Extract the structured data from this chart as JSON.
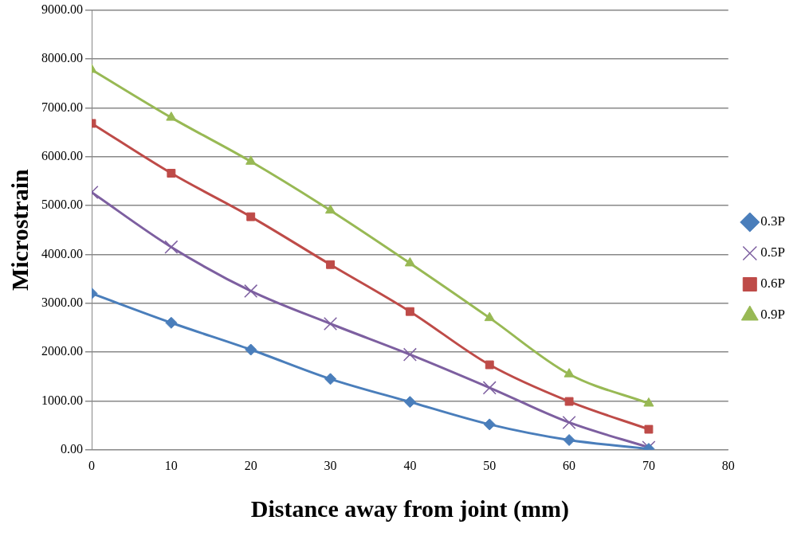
{
  "chart_data": {
    "type": "line",
    "xlabel": "Distance away from joint (mm)",
    "ylabel": "Microstrain",
    "x": [
      0,
      10,
      20,
      30,
      40,
      50,
      60,
      70
    ],
    "xlim": [
      0,
      80
    ],
    "xticks": [
      0,
      10,
      20,
      30,
      40,
      50,
      60,
      70,
      80
    ],
    "ylim": [
      0,
      9000
    ],
    "yticks": [
      {
        "value": 0,
        "label": "0.00"
      },
      {
        "value": 1000,
        "label": "1000.00"
      },
      {
        "value": 2000,
        "label": "2000.00"
      },
      {
        "value": 3000,
        "label": "3000.00"
      },
      {
        "value": 4000,
        "label": "4000.00"
      },
      {
        "value": 5000,
        "label": "5000.00"
      },
      {
        "value": 6000,
        "label": "6000.00"
      },
      {
        "value": 7000,
        "label": "7000.00"
      },
      {
        "value": 8000,
        "label": "8000.00"
      },
      {
        "value": 9000,
        "label": "9000.00"
      }
    ],
    "grid": "y",
    "legend": "right",
    "line_style": "solid",
    "series": [
      {
        "name": "0.3P",
        "color": "#4a7ebb",
        "marker": "diamond",
        "values": [
          3200,
          2600,
          2050,
          1450,
          980,
          520,
          200,
          20
        ]
      },
      {
        "name": "0.5P",
        "color": "#7d5fa0",
        "marker": "cross",
        "values": [
          5270,
          4150,
          3250,
          2580,
          1950,
          1270,
          560,
          50
        ]
      },
      {
        "name": "0.6P",
        "color": "#be4b48",
        "marker": "square",
        "values": [
          6680,
          5660,
          4770,
          3790,
          2830,
          1740,
          990,
          420
        ]
      },
      {
        "name": "0.9P",
        "color": "#98b954",
        "marker": "triangle",
        "values": [
          7780,
          6800,
          5900,
          4900,
          3820,
          2700,
          1550,
          950
        ]
      }
    ]
  }
}
